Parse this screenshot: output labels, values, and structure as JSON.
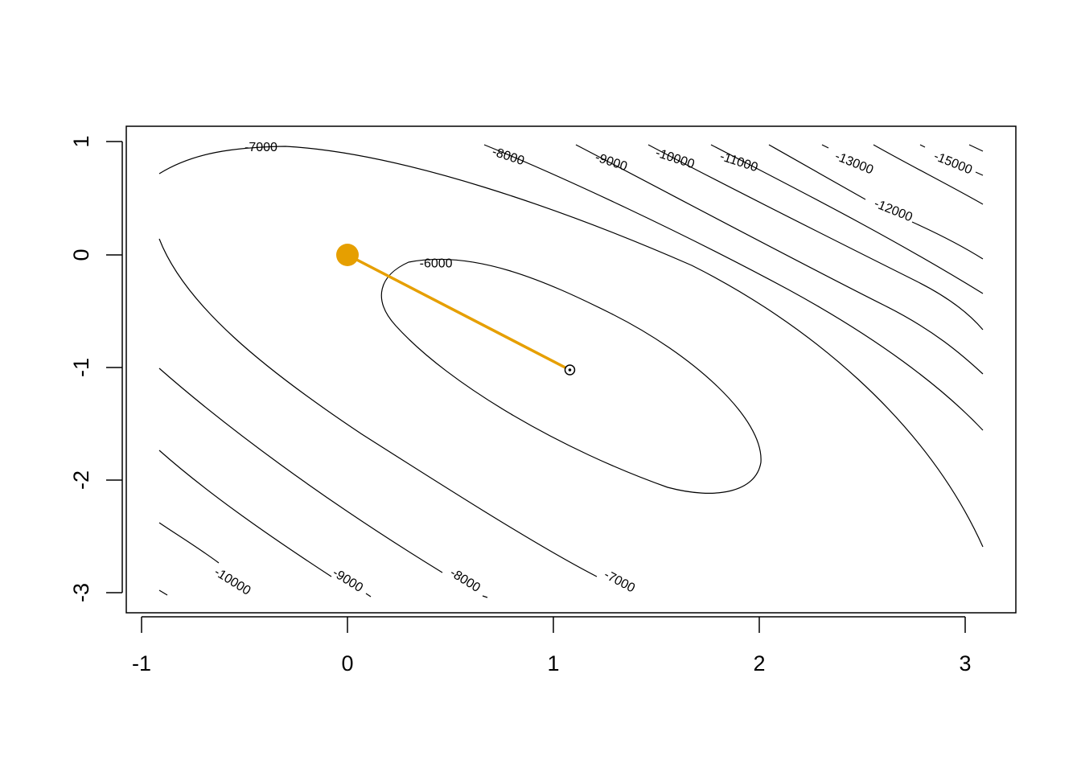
{
  "chart_data": {
    "type": "contour",
    "title": "",
    "xlabel": "",
    "ylabel": "",
    "xlim": [
      -1,
      3.2
    ],
    "ylim": [
      -3.2,
      1.1
    ],
    "x_ticks": [
      "-1",
      "0",
      "1",
      "2",
      "3"
    ],
    "y_ticks": [
      "-3",
      "-2",
      "-1",
      "0",
      "1"
    ],
    "grid": false,
    "legend": "none",
    "contour_levels": [
      "-6000",
      "-7000",
      "-8000",
      "-9000",
      "-10000",
      "-11000",
      "-12000",
      "-13000",
      "-15000"
    ],
    "contour_labels": [
      {
        "text": "-7000",
        "x": -0.42,
        "y": 0.95
      },
      {
        "text": "-6000",
        "x": 0.43,
        "y": -0.08
      },
      {
        "text": "-8000",
        "x": 0.78,
        "y": 0.87
      },
      {
        "text": "-9000",
        "x": 1.28,
        "y": 0.82
      },
      {
        "text": "-10000",
        "x": 1.59,
        "y": 0.85
      },
      {
        "text": "-11000",
        "x": 1.9,
        "y": 0.82
      },
      {
        "text": "-13000",
        "x": 2.46,
        "y": 0.81
      },
      {
        "text": "-15000",
        "x": 2.94,
        "y": 0.81
      },
      {
        "text": "-12000",
        "x": 2.65,
        "y": 0.39
      },
      {
        "text": "-10000",
        "x": -0.56,
        "y": -2.9
      },
      {
        "text": "-9000",
        "x": 0.0,
        "y": -2.89
      },
      {
        "text": "-8000",
        "x": 0.57,
        "y": -2.89
      },
      {
        "text": "-7000",
        "x": 1.32,
        "y": -2.9
      }
    ],
    "path": [
      {
        "x": 0.0,
        "y": 0.0
      },
      {
        "x": 1.08,
        "y": -1.02
      }
    ],
    "start_point": {
      "x": 0.0,
      "y": 0.0
    },
    "optimum_point": {
      "x": 1.08,
      "y": -1.02
    },
    "path_color": "#E69F00"
  }
}
